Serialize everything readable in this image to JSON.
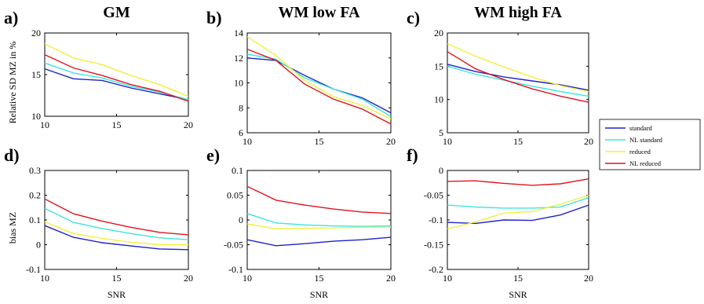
{
  "legend": [
    {
      "name": "standard",
      "color": "#1f22c8"
    },
    {
      "name": "NL standard",
      "color": "#3ce6dc"
    },
    {
      "name": "reduced",
      "color": "#f0f03c"
    },
    {
      "name": "NL reduced",
      "color": "#e1141e"
    }
  ],
  "chart_data": [
    {
      "type": "line",
      "label": "a)",
      "title": "GM",
      "xlabel": "",
      "ylabel": "Relative SD MZ in %",
      "xlim": [
        10,
        20
      ],
      "ylim": [
        10,
        20
      ],
      "xticks": [
        "10",
        "15",
        "20"
      ],
      "yticks": [
        "10",
        "15",
        "20"
      ],
      "x": [
        10,
        12,
        14,
        16,
        18,
        20
      ],
      "series": [
        {
          "name": "standard",
          "values": [
            15.7,
            14.5,
            14.3,
            13.4,
            12.7,
            12.0
          ]
        },
        {
          "name": "NL standard",
          "values": [
            16.4,
            15.2,
            14.6,
            13.6,
            12.9,
            12.0
          ]
        },
        {
          "name": "reduced",
          "values": [
            18.7,
            17.0,
            16.2,
            14.9,
            13.8,
            12.4
          ]
        },
        {
          "name": "NL reduced",
          "values": [
            17.4,
            15.8,
            14.9,
            13.8,
            13.0,
            11.8
          ]
        }
      ]
    },
    {
      "type": "line",
      "label": "b)",
      "title": "WM low FA",
      "xlabel": "",
      "ylabel": "",
      "xlim": [
        10,
        20
      ],
      "ylim": [
        6,
        14
      ],
      "xticks": [
        "10",
        "15",
        "20"
      ],
      "yticks": [
        "6",
        "8",
        "10",
        "12",
        "14"
      ],
      "x": [
        10,
        12,
        14,
        16,
        18,
        20
      ],
      "series": [
        {
          "name": "standard",
          "values": [
            12.0,
            11.8,
            10.6,
            9.5,
            8.8,
            7.6
          ]
        },
        {
          "name": "NL standard",
          "values": [
            12.3,
            11.9,
            10.4,
            9.5,
            8.7,
            7.3
          ]
        },
        {
          "name": "reduced",
          "values": [
            13.7,
            12.2,
            10.2,
            8.9,
            8.2,
            7.1
          ]
        },
        {
          "name": "NL reduced",
          "values": [
            12.7,
            11.8,
            9.9,
            8.7,
            7.9,
            6.7
          ]
        }
      ]
    },
    {
      "type": "line",
      "label": "c)",
      "title": "WM high FA",
      "xlabel": "",
      "ylabel": "",
      "xlim": [
        10,
        20
      ],
      "ylim": [
        5,
        20
      ],
      "xticks": [
        "10",
        "15",
        "20"
      ],
      "yticks": [
        "5",
        "10",
        "15",
        "20"
      ],
      "x": [
        10,
        12,
        14,
        16,
        18,
        20
      ],
      "series": [
        {
          "name": "standard",
          "values": [
            15.3,
            14.2,
            13.4,
            12.8,
            12.2,
            11.4
          ]
        },
        {
          "name": "NL standard",
          "values": [
            15.0,
            13.8,
            12.9,
            12.0,
            11.2,
            10.5
          ]
        },
        {
          "name": "reduced",
          "values": [
            18.4,
            16.5,
            14.9,
            13.4,
            12.1,
            11.2
          ]
        },
        {
          "name": "NL reduced",
          "values": [
            17.2,
            14.6,
            13.0,
            11.6,
            10.5,
            9.6
          ]
        }
      ]
    },
    {
      "type": "line",
      "label": "d)",
      "title": "",
      "xlabel": "SNR",
      "ylabel": "bias MZ",
      "xlim": [
        10,
        20
      ],
      "ylim": [
        -0.1,
        0.3
      ],
      "xticks": [
        "10",
        "15",
        "20"
      ],
      "yticks": [
        "-0.1",
        "0",
        "0.1",
        "0.2",
        "0.3"
      ],
      "x": [
        10,
        12,
        14,
        16,
        18,
        20
      ],
      "series": [
        {
          "name": "standard",
          "values": [
            0.077,
            0.03,
            0.008,
            -0.005,
            -0.017,
            -0.02
          ]
        },
        {
          "name": "NL standard",
          "values": [
            0.147,
            0.09,
            0.065,
            0.045,
            0.028,
            0.02
          ]
        },
        {
          "name": "reduced",
          "values": [
            0.092,
            0.045,
            0.025,
            0.01,
            0.0,
            0.0
          ]
        },
        {
          "name": "NL reduced",
          "values": [
            0.185,
            0.125,
            0.095,
            0.07,
            0.05,
            0.04
          ]
        }
      ]
    },
    {
      "type": "line",
      "label": "e)",
      "title": "",
      "xlabel": "SNR",
      "ylabel": "",
      "xlim": [
        10,
        20
      ],
      "ylim": [
        -0.1,
        0.1
      ],
      "xticks": [
        "10",
        "15",
        "20"
      ],
      "yticks": [
        "-0.1",
        "-0.05",
        "0",
        "0.05",
        "0.1"
      ],
      "x": [
        10,
        12,
        14,
        16,
        18,
        20
      ],
      "series": [
        {
          "name": "standard",
          "values": [
            -0.04,
            -0.052,
            -0.048,
            -0.043,
            -0.04,
            -0.035
          ]
        },
        {
          "name": "NL standard",
          "values": [
            0.013,
            -0.006,
            -0.01,
            -0.012,
            -0.013,
            -0.012
          ]
        },
        {
          "name": "reduced",
          "values": [
            -0.008,
            -0.018,
            -0.017,
            -0.016,
            -0.015,
            -0.015
          ]
        },
        {
          "name": "NL reduced",
          "values": [
            0.068,
            0.04,
            0.03,
            0.022,
            0.016,
            0.013
          ]
        }
      ]
    },
    {
      "type": "line",
      "label": "f)",
      "title": "",
      "xlabel": "SNR",
      "ylabel": "",
      "xlim": [
        10,
        20
      ],
      "ylim": [
        -0.2,
        0
      ],
      "xticks": [
        "10",
        "15",
        "20"
      ],
      "yticks": [
        "-0.2",
        "-0.15",
        "-0.1",
        "-0.05",
        "0"
      ],
      "x": [
        10,
        12,
        14,
        16,
        18,
        20
      ],
      "series": [
        {
          "name": "standard",
          "values": [
            -0.105,
            -0.107,
            -0.1,
            -0.101,
            -0.09,
            -0.07
          ]
        },
        {
          "name": "NL standard",
          "values": [
            -0.07,
            -0.074,
            -0.076,
            -0.076,
            -0.074,
            -0.055
          ]
        },
        {
          "name": "reduced",
          "values": [
            -0.118,
            -0.104,
            -0.086,
            -0.083,
            -0.068,
            -0.05
          ]
        },
        {
          "name": "NL reduced",
          "values": [
            -0.022,
            -0.021,
            -0.026,
            -0.03,
            -0.027,
            -0.017
          ]
        }
      ]
    }
  ]
}
